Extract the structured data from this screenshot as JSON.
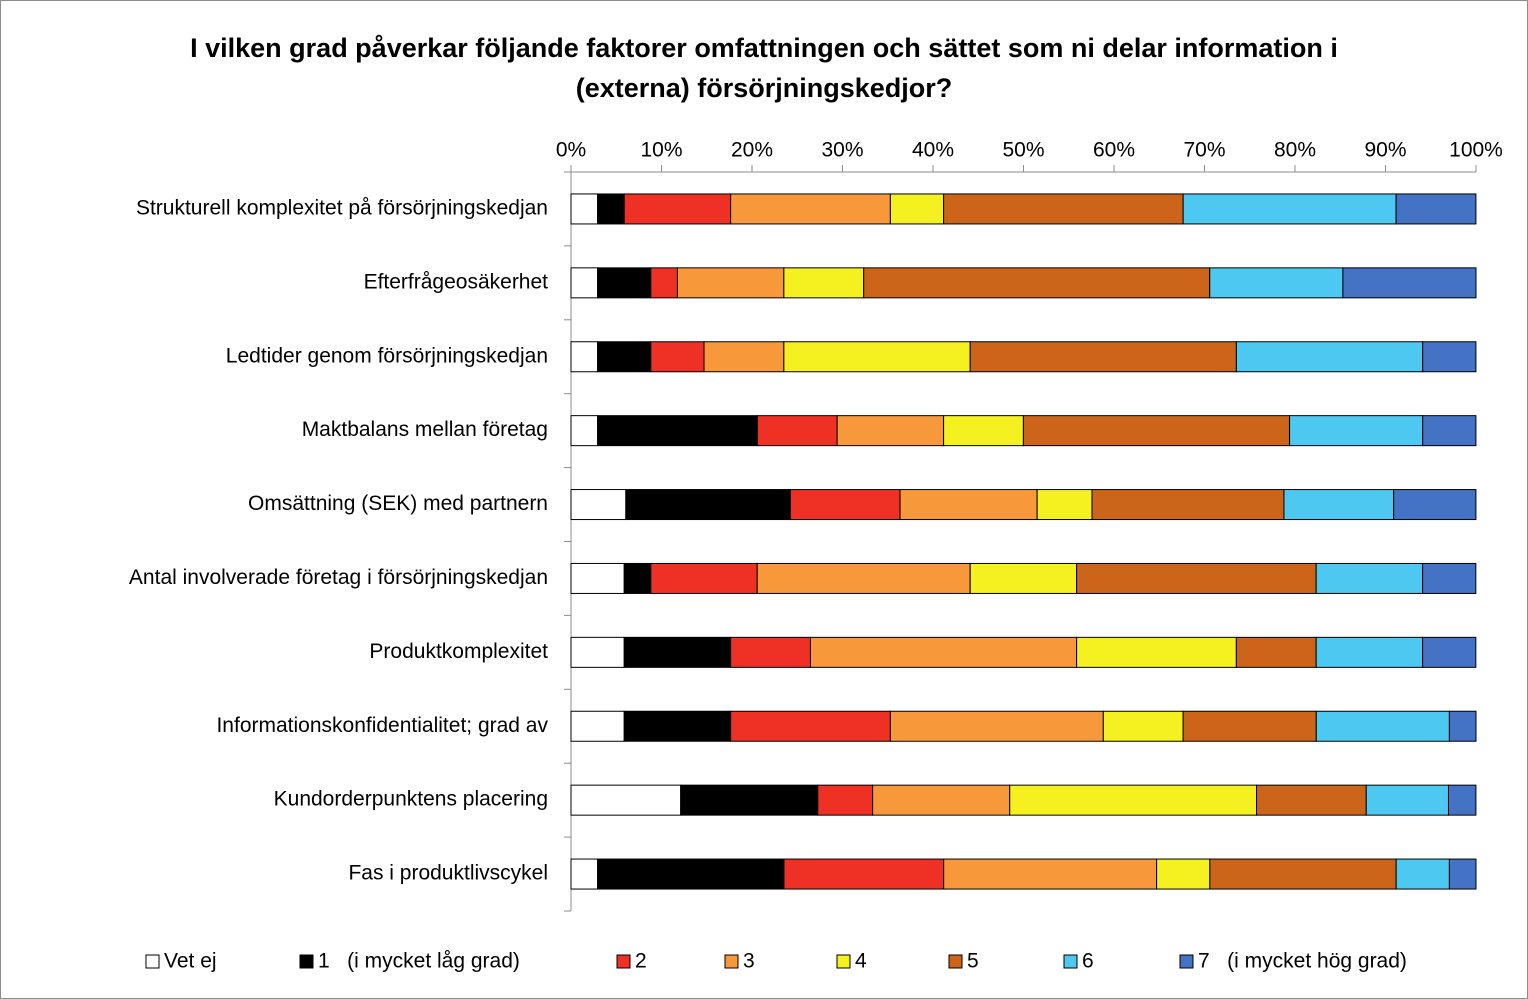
{
  "chart_data": {
    "type": "stacked_bar_horizontal",
    "title": "I vilken grad påverkar följande faktorer omfattningen och sättet som ni delar information i (externa) försörjningskedjor?",
    "categories": [
      "Strukturell komplexitet på försörjningskedjan",
      "Efterfrågeosäkerhet",
      "Ledtider genom försörjningskedjan",
      "Maktbalans mellan företag",
      "Omsättning (SEK) med partnern",
      "Antal involverade företag i försörjningskedjan",
      "Produktkomplexitet",
      "Informationskonfidentialitet; grad av",
      "Kundorderpunktens placering",
      "Fas i produktlivscykel"
    ],
    "series": [
      {
        "name": "Vet ej",
        "color": "#ffffff",
        "values": [
          2.94,
          2.94,
          2.94,
          2.94,
          6.06,
          5.88,
          5.88,
          5.88,
          12.12,
          2.94
        ]
      },
      {
        "name": "1   (i mycket låg grad)",
        "color": "#000000",
        "values": [
          2.94,
          5.88,
          5.88,
          17.65,
          18.18,
          2.94,
          11.76,
          11.76,
          15.15,
          20.59
        ]
      },
      {
        "name": "2",
        "color": "#ee3124",
        "values": [
          11.76,
          2.94,
          5.88,
          8.82,
          12.12,
          11.76,
          8.82,
          17.65,
          6.06,
          17.65
        ]
      },
      {
        "name": "3",
        "color": "#f7993a",
        "values": [
          17.65,
          11.76,
          8.82,
          11.76,
          15.15,
          23.53,
          29.41,
          23.53,
          15.15,
          23.53
        ]
      },
      {
        "name": "4",
        "color": "#f5f020",
        "values": [
          5.88,
          8.82,
          20.59,
          8.82,
          6.06,
          11.76,
          17.65,
          8.82,
          27.27,
          5.88
        ]
      },
      {
        "name": "5",
        "color": "#cc6419",
        "values": [
          26.47,
          38.24,
          29.41,
          29.41,
          21.21,
          26.47,
          8.82,
          14.71,
          12.12,
          20.59
        ]
      },
      {
        "name": "6",
        "color": "#4dc8f0",
        "values": [
          23.53,
          14.71,
          20.59,
          14.71,
          12.12,
          11.76,
          11.76,
          14.71,
          9.09,
          5.88
        ]
      },
      {
        "name": "7   (i mycket hög grad)",
        "color": "#4472c4",
        "values": [
          8.82,
          14.71,
          5.88,
          5.88,
          9.09,
          5.88,
          5.88,
          2.94,
          3.03,
          2.94
        ]
      }
    ],
    "xlim": [
      0,
      100
    ],
    "xticks": [
      {
        "value": 0,
        "label": "0%"
      },
      {
        "value": 10,
        "label": "10%"
      },
      {
        "value": 20,
        "label": "20%"
      },
      {
        "value": 30,
        "label": "30%"
      },
      {
        "value": 40,
        "label": "40%"
      },
      {
        "value": 50,
        "label": "50%"
      },
      {
        "value": 60,
        "label": "60%"
      },
      {
        "value": 70,
        "label": "70%"
      },
      {
        "value": 80,
        "label": "80%"
      },
      {
        "value": 90,
        "label": "90%"
      },
      {
        "value": 100,
        "label": "100%"
      }
    ],
    "grid": false,
    "legend": "bottom"
  }
}
